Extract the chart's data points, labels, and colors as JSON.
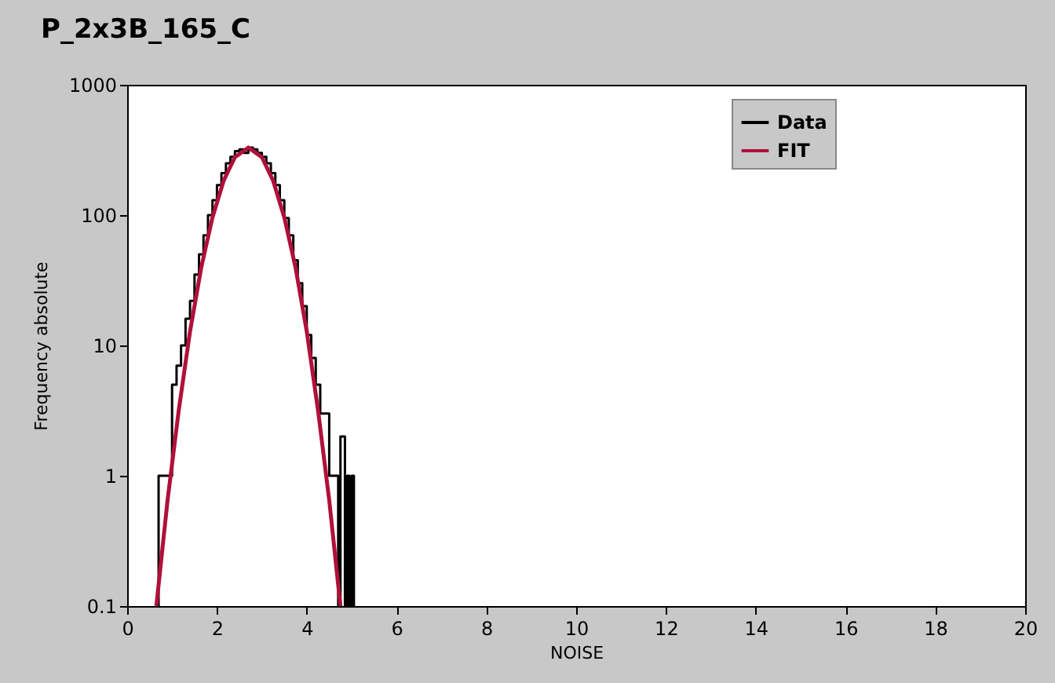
{
  "chart_data": {
    "type": "line",
    "title": "P_2x3B_165_C",
    "xlabel": "NOISE",
    "ylabel": "Frequency absolute",
    "log": "y",
    "xlim": [
      0,
      20
    ],
    "ylim": [
      0.1,
      1000
    ],
    "xticks": [
      0,
      2,
      4,
      6,
      8,
      10,
      12,
      14,
      16,
      18,
      20
    ],
    "yticks": [
      0.1,
      1,
      10,
      100,
      1000
    ],
    "legend": "top right",
    "grid": false,
    "series": [
      {
        "name": "Data",
        "type": "step",
        "color": "#000000",
        "x": [
          0.65,
          0.7,
          0.8,
          0.9,
          1.0,
          1.1,
          1.2,
          1.3,
          1.4,
          1.5,
          1.6,
          1.7,
          1.8,
          1.9,
          2.0,
          2.1,
          2.2,
          2.3,
          2.4,
          2.5,
          2.6,
          2.7,
          2.8,
          2.9,
          3.0,
          3.1,
          3.2,
          3.3,
          3.4,
          3.5,
          3.6,
          3.7,
          3.8,
          3.9,
          4.0,
          4.1,
          4.2,
          4.3,
          4.4,
          4.5,
          4.6,
          4.7,
          4.75,
          4.85,
          4.9,
          4.95,
          5.0,
          5.05
        ],
        "values": [
          0.1,
          1,
          1,
          1,
          5,
          7,
          10,
          16,
          22,
          35,
          50,
          70,
          100,
          130,
          170,
          210,
          250,
          280,
          310,
          320,
          300,
          330,
          320,
          300,
          280,
          250,
          210,
          170,
          130,
          95,
          70,
          45,
          30,
          20,
          12,
          8,
          5,
          3,
          3,
          1,
          1,
          0.1,
          2,
          0.1,
          1,
          0.1,
          1,
          0.1
        ]
      },
      {
        "name": "FIT",
        "type": "line",
        "color": "#b0103a",
        "x": [
          0.65,
          0.9,
          1.15,
          1.4,
          1.65,
          1.9,
          2.15,
          2.4,
          2.7,
          3.0,
          3.25,
          3.5,
          3.75,
          4.0,
          4.25,
          4.5,
          4.75
        ],
        "values": [
          0.1,
          0.65,
          3.2,
          12.8,
          39.6,
          96,
          184,
          278,
          330,
          278,
          184,
          96,
          39.6,
          12.8,
          3.2,
          0.65,
          0.1
        ]
      }
    ]
  }
}
